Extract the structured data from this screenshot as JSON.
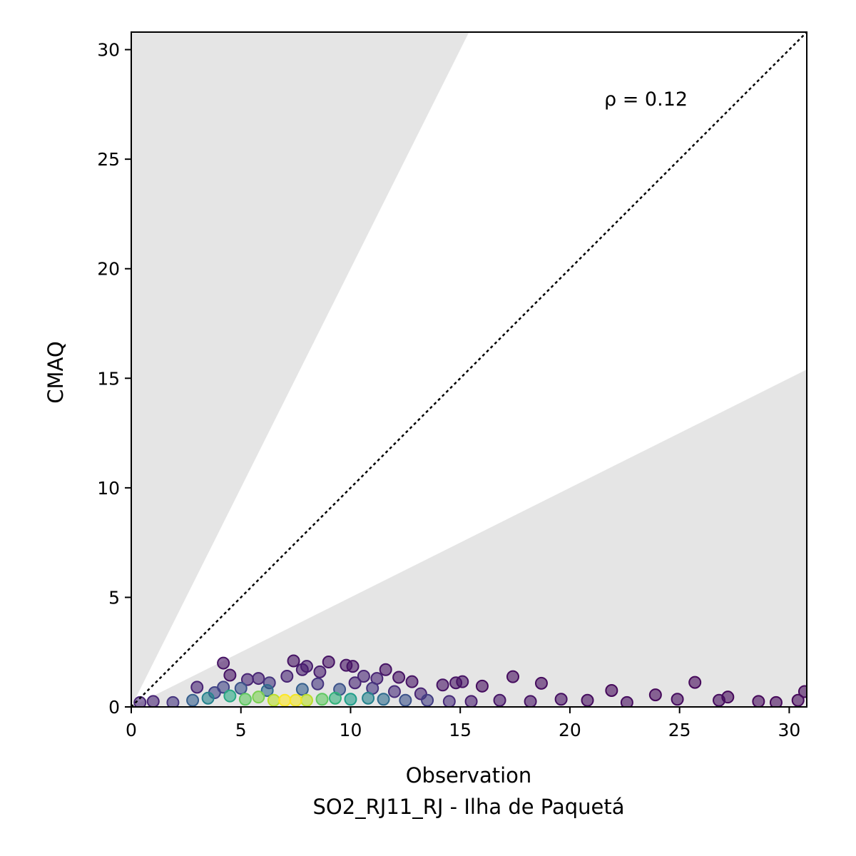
{
  "chart_data": {
    "type": "scatter",
    "xlabel": "Observation",
    "subtitle": "SO2_RJ11_RJ - Ilha de Paquetá",
    "ylabel": "CMAQ",
    "xlim": [
      0,
      30.8
    ],
    "ylim": [
      0,
      30.8
    ],
    "xticks": [
      0,
      5,
      10,
      15,
      20,
      25,
      30
    ],
    "yticks": [
      0,
      5,
      10,
      15,
      20,
      25,
      30
    ],
    "annotation": "ρ = 0.12",
    "reference_line": "1:1",
    "shaded_regions": "outside factor-of-2 band (y > 2x and y < x/2)",
    "colormap": "viridis (point density)",
    "grid": false,
    "shade_color": "#e5e5e5",
    "points": [
      {
        "x": 4.2,
        "y": 2.0,
        "d": 0.05
      },
      {
        "x": 4.5,
        "y": 1.45,
        "d": 0.05
      },
      {
        "x": 5.3,
        "y": 1.25,
        "d": 0.1
      },
      {
        "x": 5.8,
        "y": 1.3,
        "d": 0.1
      },
      {
        "x": 6.3,
        "y": 1.1,
        "d": 0.15
      },
      {
        "x": 7.1,
        "y": 1.4,
        "d": 0.1
      },
      {
        "x": 7.4,
        "y": 2.1,
        "d": 0.05
      },
      {
        "x": 7.8,
        "y": 1.7,
        "d": 0.08
      },
      {
        "x": 8.0,
        "y": 1.85,
        "d": 0.08
      },
      {
        "x": 8.6,
        "y": 1.6,
        "d": 0.08
      },
      {
        "x": 9.0,
        "y": 2.05,
        "d": 0.05
      },
      {
        "x": 9.8,
        "y": 1.9,
        "d": 0.05
      },
      {
        "x": 10.1,
        "y": 1.85,
        "d": 0.05
      },
      {
        "x": 10.6,
        "y": 1.4,
        "d": 0.1
      },
      {
        "x": 11.2,
        "y": 1.3,
        "d": 0.1
      },
      {
        "x": 11.6,
        "y": 1.7,
        "d": 0.05
      },
      {
        "x": 12.2,
        "y": 1.35,
        "d": 0.05
      },
      {
        "x": 12.8,
        "y": 1.15,
        "d": 0.05
      },
      {
        "x": 14.2,
        "y": 1.0,
        "d": 0.05
      },
      {
        "x": 14.8,
        "y": 1.1,
        "d": 0.05
      },
      {
        "x": 15.1,
        "y": 1.15,
        "d": 0.05
      },
      {
        "x": 16.0,
        "y": 0.95,
        "d": 0.03
      },
      {
        "x": 17.4,
        "y": 1.38,
        "d": 0.03
      },
      {
        "x": 18.7,
        "y": 1.08,
        "d": 0.03
      },
      {
        "x": 21.9,
        "y": 0.75,
        "d": 0.02
      },
      {
        "x": 23.9,
        "y": 0.55,
        "d": 0.02
      },
      {
        "x": 25.7,
        "y": 1.12,
        "d": 0.02
      },
      {
        "x": 27.2,
        "y": 0.45,
        "d": 0.02
      },
      {
        "x": 28.6,
        "y": 0.25,
        "d": 0.02
      },
      {
        "x": 29.4,
        "y": 0.2,
        "d": 0.02
      },
      {
        "x": 30.7,
        "y": 0.7,
        "d": 0.02
      },
      {
        "x": 30.4,
        "y": 0.3,
        "d": 0.02
      },
      {
        "x": 20.8,
        "y": 0.3,
        "d": 0.03
      },
      {
        "x": 22.6,
        "y": 0.2,
        "d": 0.03
      },
      {
        "x": 24.9,
        "y": 0.35,
        "d": 0.03
      },
      {
        "x": 26.8,
        "y": 0.3,
        "d": 0.03
      },
      {
        "x": 19.6,
        "y": 0.35,
        "d": 0.04
      },
      {
        "x": 18.2,
        "y": 0.25,
        "d": 0.05
      },
      {
        "x": 16.8,
        "y": 0.3,
        "d": 0.06
      },
      {
        "x": 3.0,
        "y": 0.9,
        "d": 0.1
      },
      {
        "x": 4.2,
        "y": 0.9,
        "d": 0.2
      },
      {
        "x": 0.4,
        "y": 0.2,
        "d": 0.1
      },
      {
        "x": 1.0,
        "y": 0.25,
        "d": 0.1
      },
      {
        "x": 1.9,
        "y": 0.2,
        "d": 0.15
      },
      {
        "x": 2.8,
        "y": 0.3,
        "d": 0.3
      },
      {
        "x": 3.5,
        "y": 0.4,
        "d": 0.45
      },
      {
        "x": 4.5,
        "y": 0.5,
        "d": 0.6
      },
      {
        "x": 5.2,
        "y": 0.35,
        "d": 0.75
      },
      {
        "x": 5.8,
        "y": 0.45,
        "d": 0.8
      },
      {
        "x": 6.5,
        "y": 0.3,
        "d": 0.9
      },
      {
        "x": 7.0,
        "y": 0.3,
        "d": 1.0
      },
      {
        "x": 7.5,
        "y": 0.3,
        "d": 0.98
      },
      {
        "x": 8.0,
        "y": 0.3,
        "d": 0.9
      },
      {
        "x": 8.7,
        "y": 0.35,
        "d": 0.75
      },
      {
        "x": 9.3,
        "y": 0.4,
        "d": 0.65
      },
      {
        "x": 10.0,
        "y": 0.35,
        "d": 0.55
      },
      {
        "x": 10.8,
        "y": 0.4,
        "d": 0.45
      },
      {
        "x": 11.5,
        "y": 0.35,
        "d": 0.35
      },
      {
        "x": 12.5,
        "y": 0.3,
        "d": 0.25
      },
      {
        "x": 13.5,
        "y": 0.3,
        "d": 0.18
      },
      {
        "x": 14.5,
        "y": 0.25,
        "d": 0.12
      },
      {
        "x": 15.5,
        "y": 0.25,
        "d": 0.08
      },
      {
        "x": 6.2,
        "y": 0.75,
        "d": 0.35
      },
      {
        "x": 7.8,
        "y": 0.8,
        "d": 0.3
      },
      {
        "x": 9.5,
        "y": 0.8,
        "d": 0.25
      },
      {
        "x": 11.0,
        "y": 0.85,
        "d": 0.15
      },
      {
        "x": 5.0,
        "y": 0.85,
        "d": 0.25
      },
      {
        "x": 8.5,
        "y": 1.05,
        "d": 0.15
      },
      {
        "x": 10.2,
        "y": 1.1,
        "d": 0.1
      },
      {
        "x": 12.0,
        "y": 0.7,
        "d": 0.12
      },
      {
        "x": 13.2,
        "y": 0.6,
        "d": 0.1
      },
      {
        "x": 3.8,
        "y": 0.65,
        "d": 0.2
      }
    ]
  }
}
